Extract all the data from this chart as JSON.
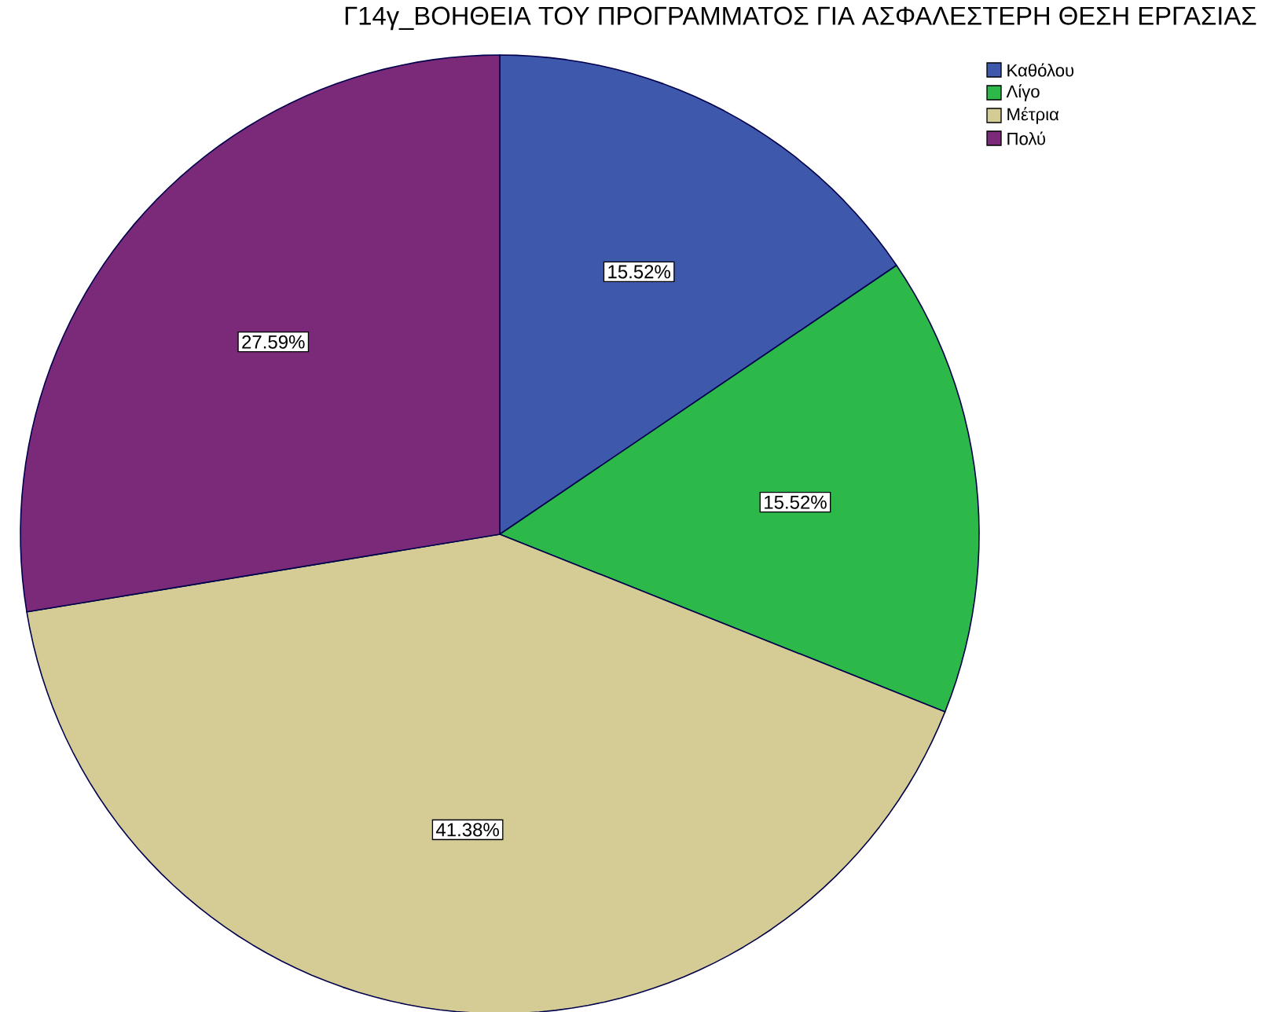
{
  "chart_data": {
    "type": "pie",
    "title": "Γ14γ_ΒΟΗΘΕΙΑ ΤΟΥ ΠΡΟΓΡΑΜΜΑΤΟΣ ΓΙΑ ΑΣΦΑΛΕΣΤΕΡΗ ΘΕΣΗ ΕΡΓΑΣΙΑΣ",
    "categories": [
      "Καθόλου",
      "Λίγο",
      "Μέτρια",
      "Πολύ"
    ],
    "values": [
      15.52,
      15.52,
      41.38,
      27.59
    ],
    "colors": [
      "#3e58ac",
      "#2db84a",
      "#d4cc94",
      "#7a2a78"
    ],
    "value_labels": [
      "15.52%",
      "15.52%",
      "41.38%",
      "27.59%"
    ],
    "legend": "top right"
  }
}
